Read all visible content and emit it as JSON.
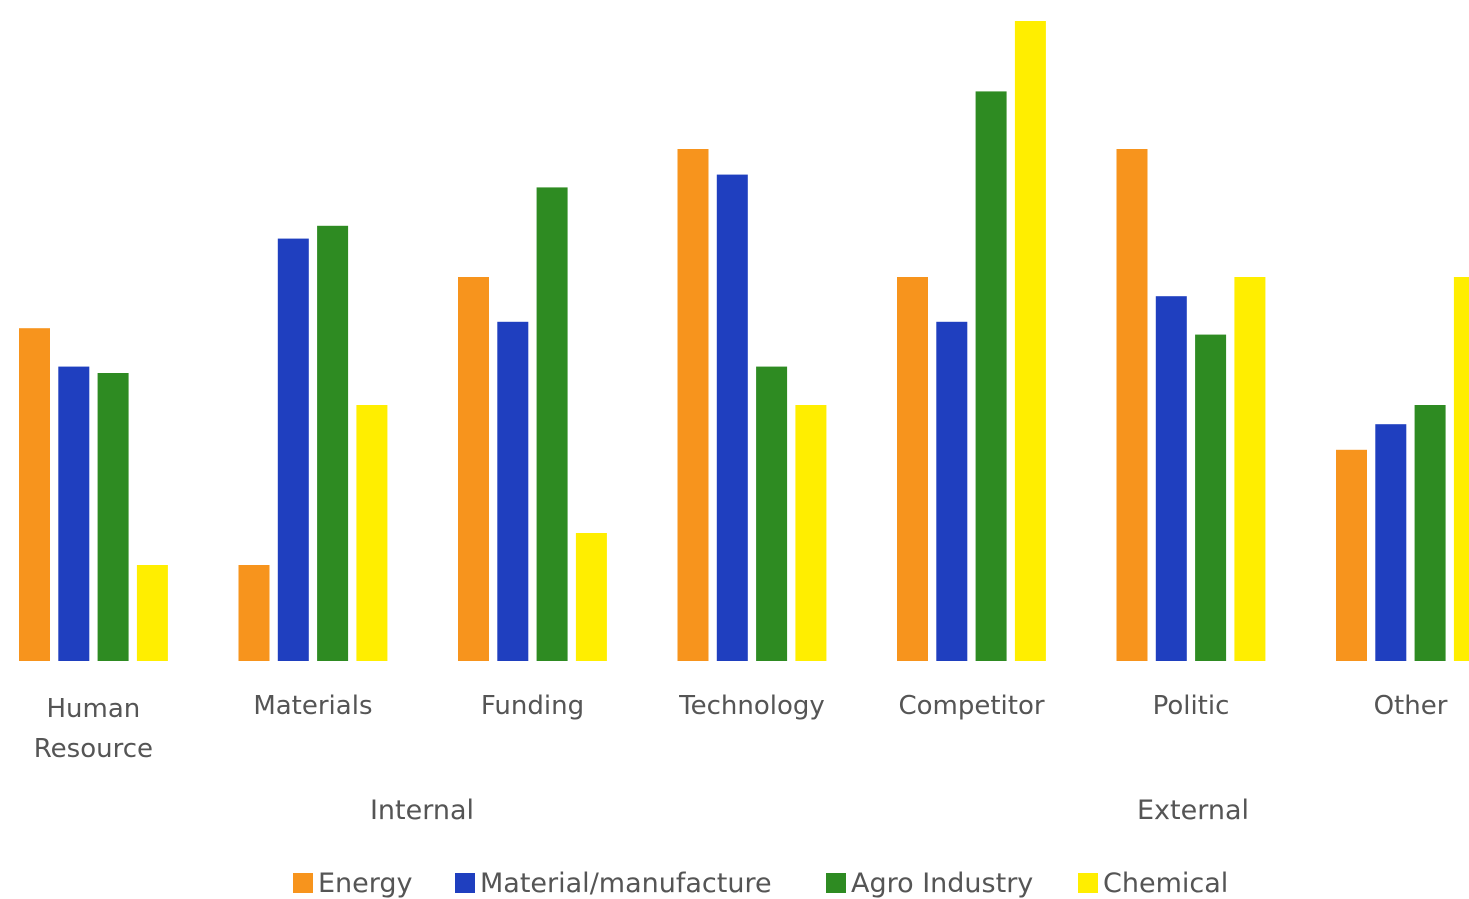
{
  "chart_data": {
    "type": "bar",
    "title": "",
    "xlabel": "",
    "ylabel": "",
    "ylim": [
      0,
      100
    ],
    "grid": false,
    "legend_position": "bottom",
    "categories": [
      "Human Resource",
      "Materials",
      "Funding",
      "Technology",
      "Competitor",
      "Politic",
      "Other"
    ],
    "groups": [
      {
        "label": "Internal",
        "categories": [
          "Human Resource",
          "Materials",
          "Funding",
          "Technology"
        ]
      },
      {
        "label": "External",
        "categories": [
          "Competitor",
          "Politic",
          "Other"
        ]
      }
    ],
    "series": [
      {
        "name": "Energy",
        "color": "#F7941D",
        "values": [
          52,
          15,
          60,
          80,
          60,
          80,
          33
        ]
      },
      {
        "name": "Material/manufacture",
        "color": "#1F3FBF",
        "values": [
          46,
          66,
          53,
          76,
          53,
          57,
          37
        ]
      },
      {
        "name": "Agro Industry",
        "color": "#2E8B22",
        "values": [
          45,
          68,
          74,
          46,
          89,
          51,
          40
        ]
      },
      {
        "name": "Chemical",
        "color": "#FFEE00",
        "values": [
          15,
          40,
          20,
          40,
          100,
          60,
          60
        ]
      }
    ]
  }
}
